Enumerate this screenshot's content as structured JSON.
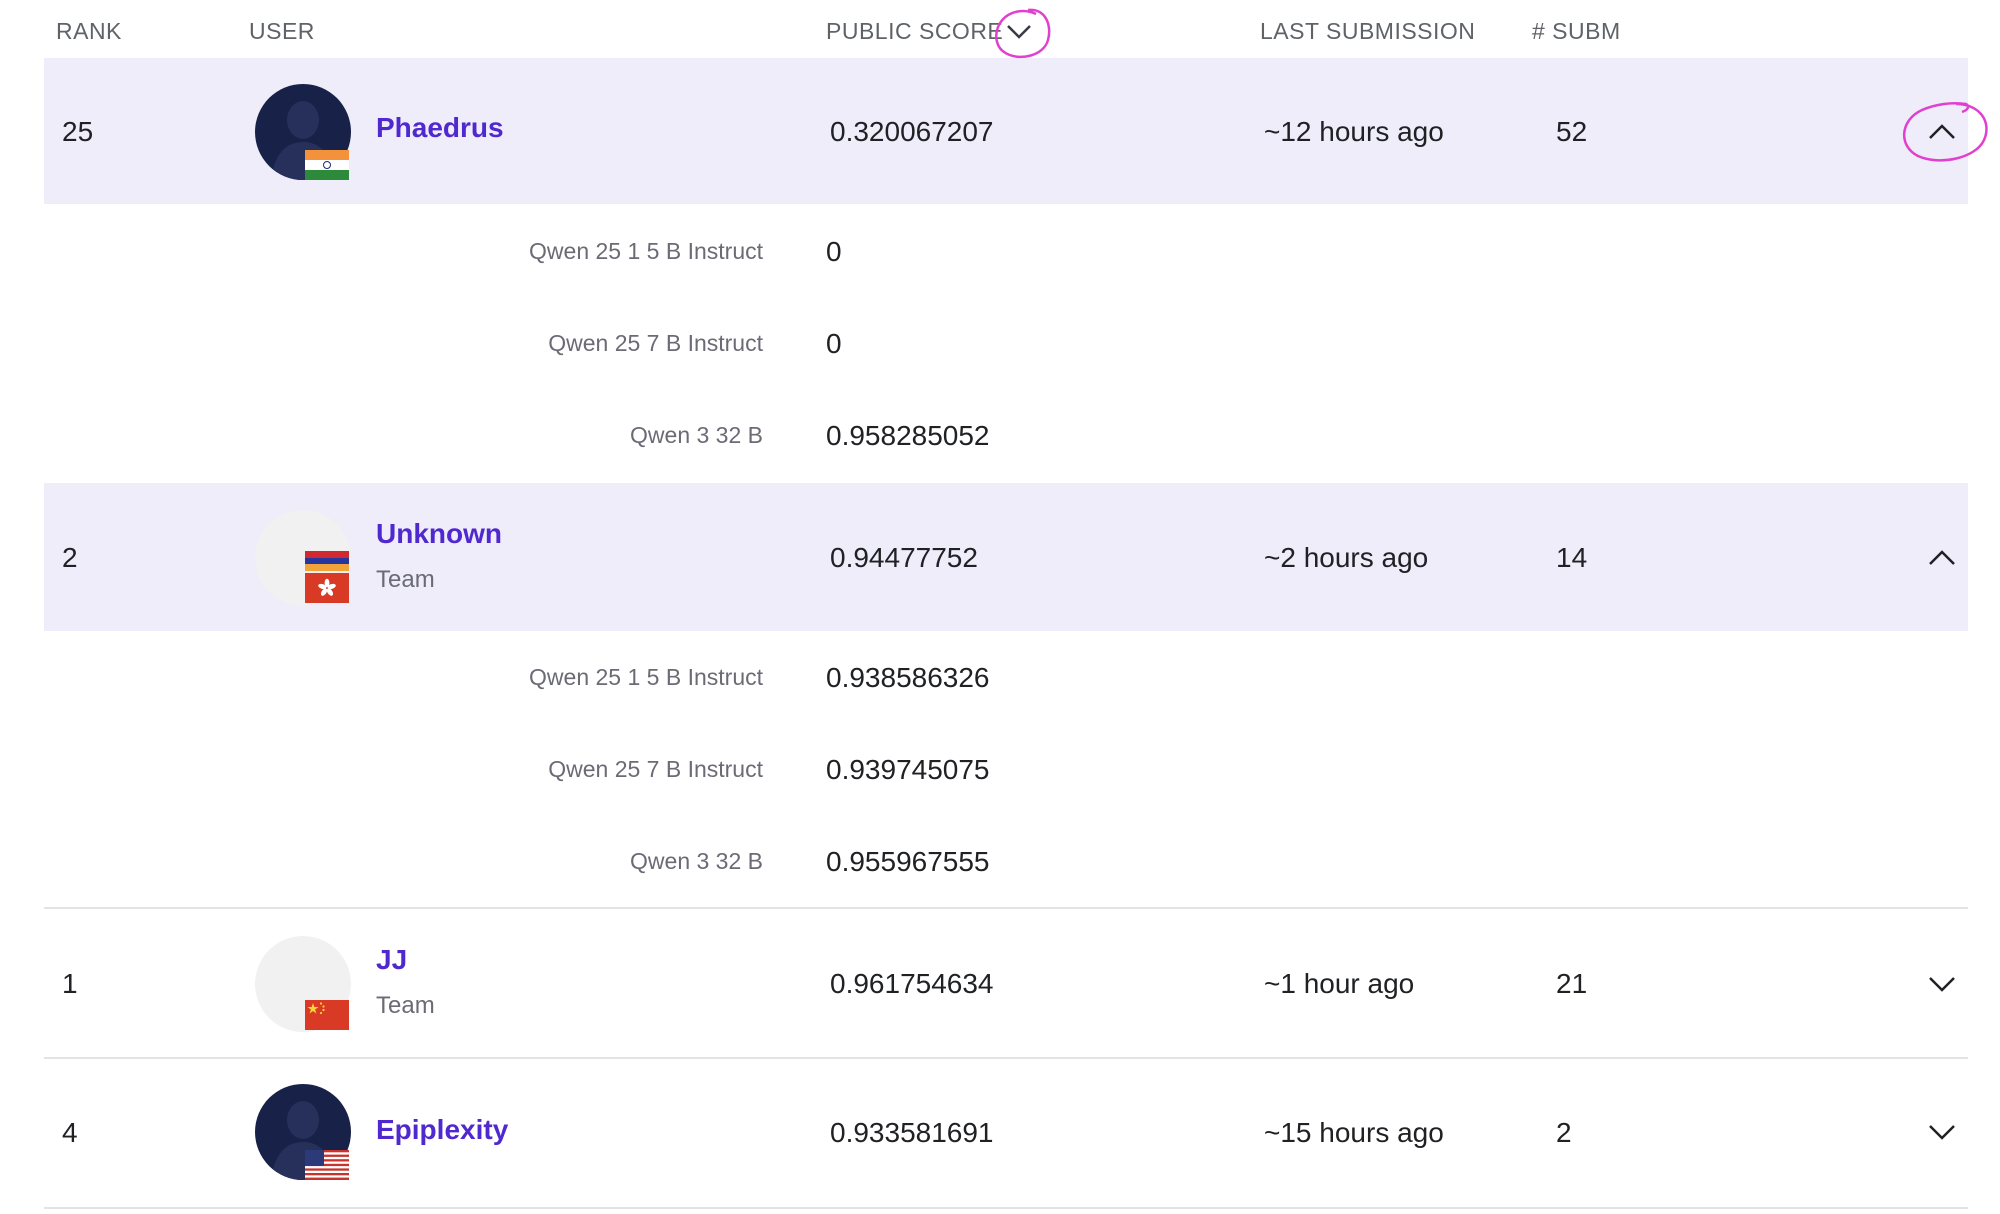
{
  "columns": {
    "rank": "RANK",
    "user": "USER",
    "public_score": "PUBLIC SCORE",
    "last_submission": "LAST SUBMISSION",
    "submissions": "# SUBM"
  },
  "rows": [
    {
      "rank": "25",
      "name": "Phaedrus",
      "subtitle": "",
      "score": "0.320067207",
      "last": "~12 hours ago",
      "count": "52",
      "expanded": true,
      "flag": "india-flag-icon",
      "models": [
        {
          "label": "Qwen 25 1 5 B Instruct",
          "score": "0"
        },
        {
          "label": "Qwen 25 7 B Instruct",
          "score": "0"
        },
        {
          "label": "Qwen 3 32 B",
          "score": "0.958285052"
        }
      ]
    },
    {
      "rank": "2",
      "name": "Unknown",
      "subtitle": "Team",
      "score": "0.94477752",
      "last": "~2 hours ago",
      "count": "14",
      "expanded": true,
      "flag": "armenia-and-hong-kong-flag-icons",
      "models": [
        {
          "label": "Qwen 25 1 5 B Instruct",
          "score": "0.938586326"
        },
        {
          "label": "Qwen 25 7 B Instruct",
          "score": "0.939745075"
        },
        {
          "label": "Qwen 3 32 B",
          "score": "0.955967555"
        }
      ]
    },
    {
      "rank": "1",
      "name": "JJ",
      "subtitle": "Team",
      "score": "0.961754634",
      "last": "~1 hour ago",
      "count": "21",
      "expanded": false,
      "flag": "china-flag-icon"
    },
    {
      "rank": "4",
      "name": "Epiplexity",
      "subtitle": "",
      "score": "0.933581691",
      "last": "~15 hours ago",
      "count": "2",
      "expanded": false,
      "flag": "usa-flag-icon"
    }
  ],
  "colors": {
    "accent": "#4f28d0",
    "highlight_band": "#eeedf9",
    "annotation": "#e040d0",
    "avatar_dark": "#182248"
  }
}
